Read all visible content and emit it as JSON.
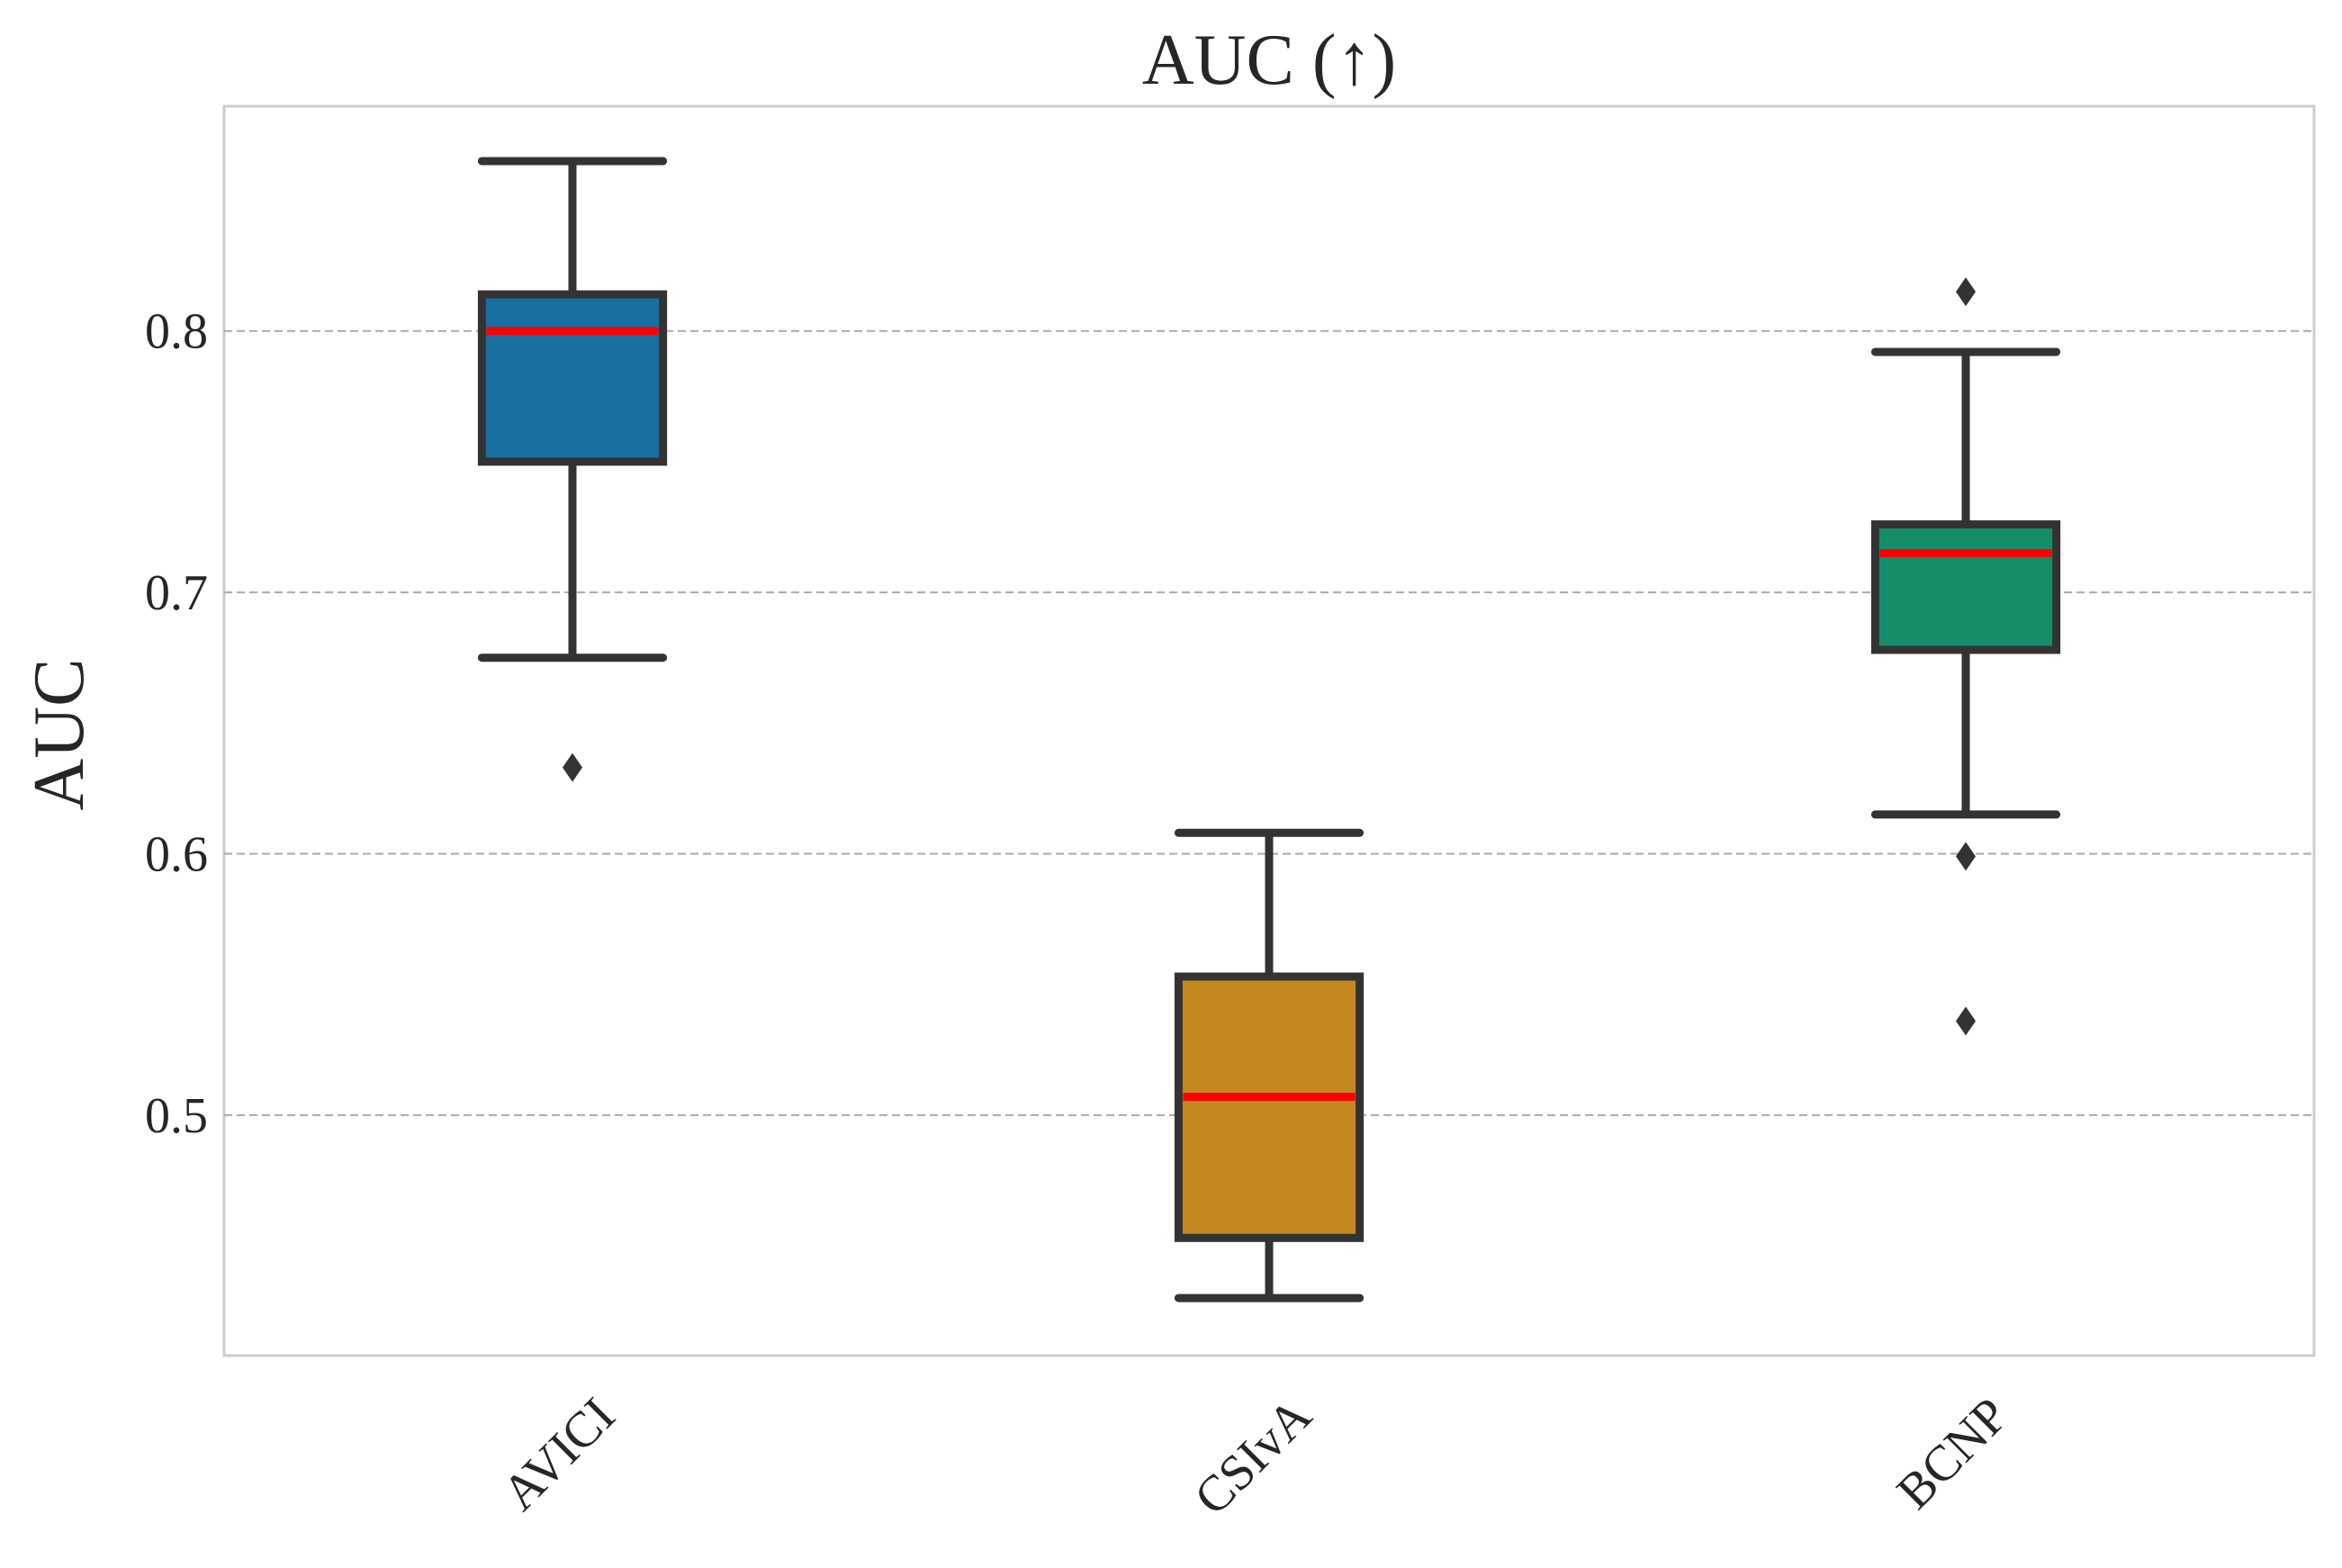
{
  "chart_data": {
    "type": "box",
    "title": "AUC (↑)",
    "xlabel": "",
    "ylabel": "AUC",
    "ylim": [
      0.408,
      0.886
    ],
    "yticks": [
      0.5,
      0.6,
      0.7,
      0.8
    ],
    "ytick_labels": [
      "0.5",
      "0.6",
      "0.7",
      "0.8"
    ],
    "grid": "y-dashed",
    "categories": [
      "AVICI",
      "CSIvA",
      "BCNP"
    ],
    "boxes": [
      {
        "name": "AVICI",
        "color": "#1a6fa1",
        "whisker_low": 0.675,
        "q1": 0.75,
        "median": 0.8,
        "q3": 0.814,
        "whisker_high": 0.865,
        "outliers": [
          0.633
        ]
      },
      {
        "name": "CSIvA",
        "color": "#c48821",
        "whisker_low": 0.43,
        "q1": 0.453,
        "median": 0.507,
        "q3": 0.553,
        "whisker_high": 0.608,
        "outliers": []
      },
      {
        "name": "BCNP",
        "color": "#168d6a",
        "whisker_low": 0.615,
        "q1": 0.678,
        "median": 0.715,
        "q3": 0.726,
        "whisker_high": 0.792,
        "outliers": [
          0.815,
          0.599,
          0.536
        ]
      }
    ],
    "median_color": "#ff0000",
    "box_edge_color": "#333333"
  }
}
